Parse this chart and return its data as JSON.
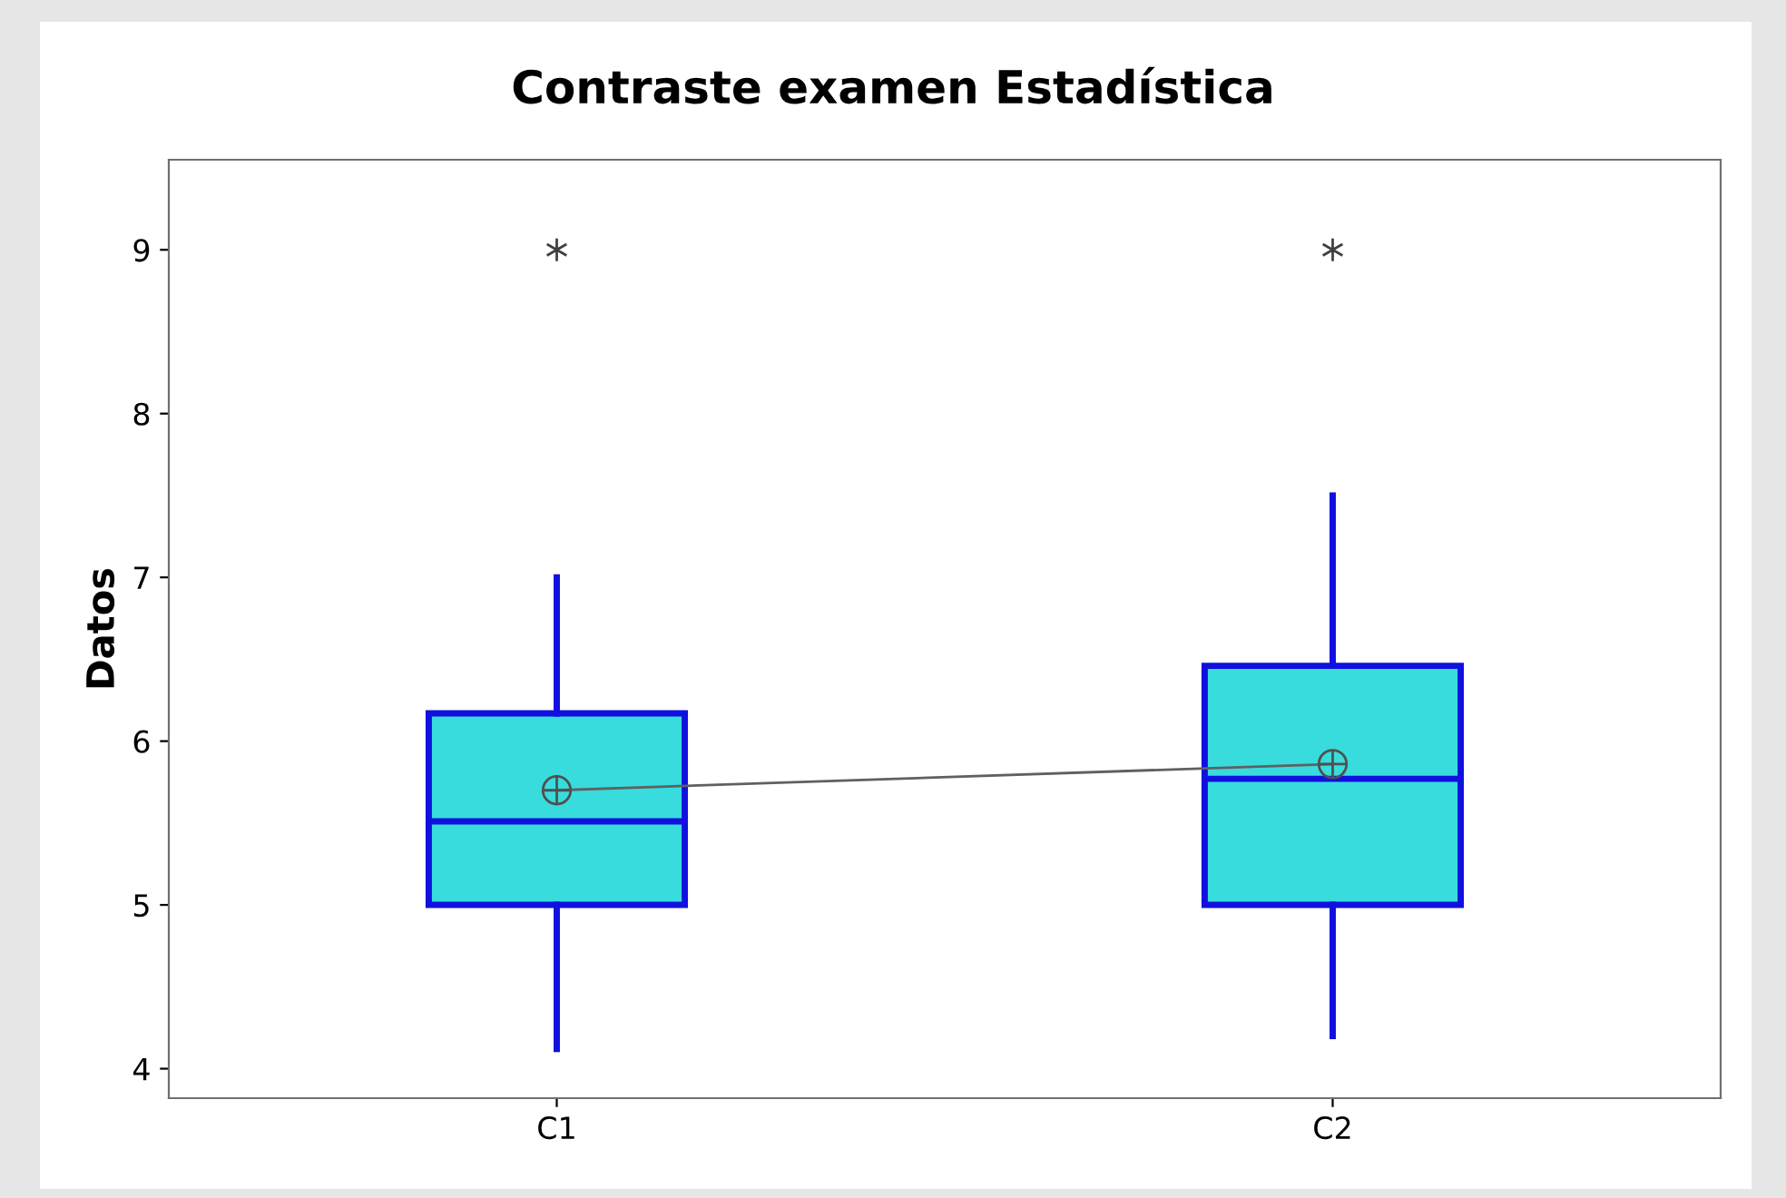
{
  "chart_data": {
    "type": "box",
    "title": "Contraste examen Estadística",
    "ylabel": "Datos",
    "categories": [
      "C1",
      "C2"
    ],
    "boxes": [
      {
        "low": 4.12,
        "q1": 5.0,
        "median": 5.51,
        "q3": 6.17,
        "high": 7.0,
        "mean": 5.7,
        "outliers": [
          9
        ]
      },
      {
        "low": 4.2,
        "q1": 5.0,
        "median": 5.77,
        "q3": 6.46,
        "high": 7.5,
        "mean": 5.86,
        "outliers": [
          9
        ]
      }
    ],
    "series": [
      {
        "type": "line",
        "color": "#606060",
        "values": [
          5.7,
          5.86
        ]
      }
    ],
    "color": "#38dcdc",
    "ylim": [
      3.82,
      9.55
    ],
    "yticks": [
      4,
      5,
      6,
      7,
      8,
      9
    ],
    "grid": false,
    "legend": false
  }
}
